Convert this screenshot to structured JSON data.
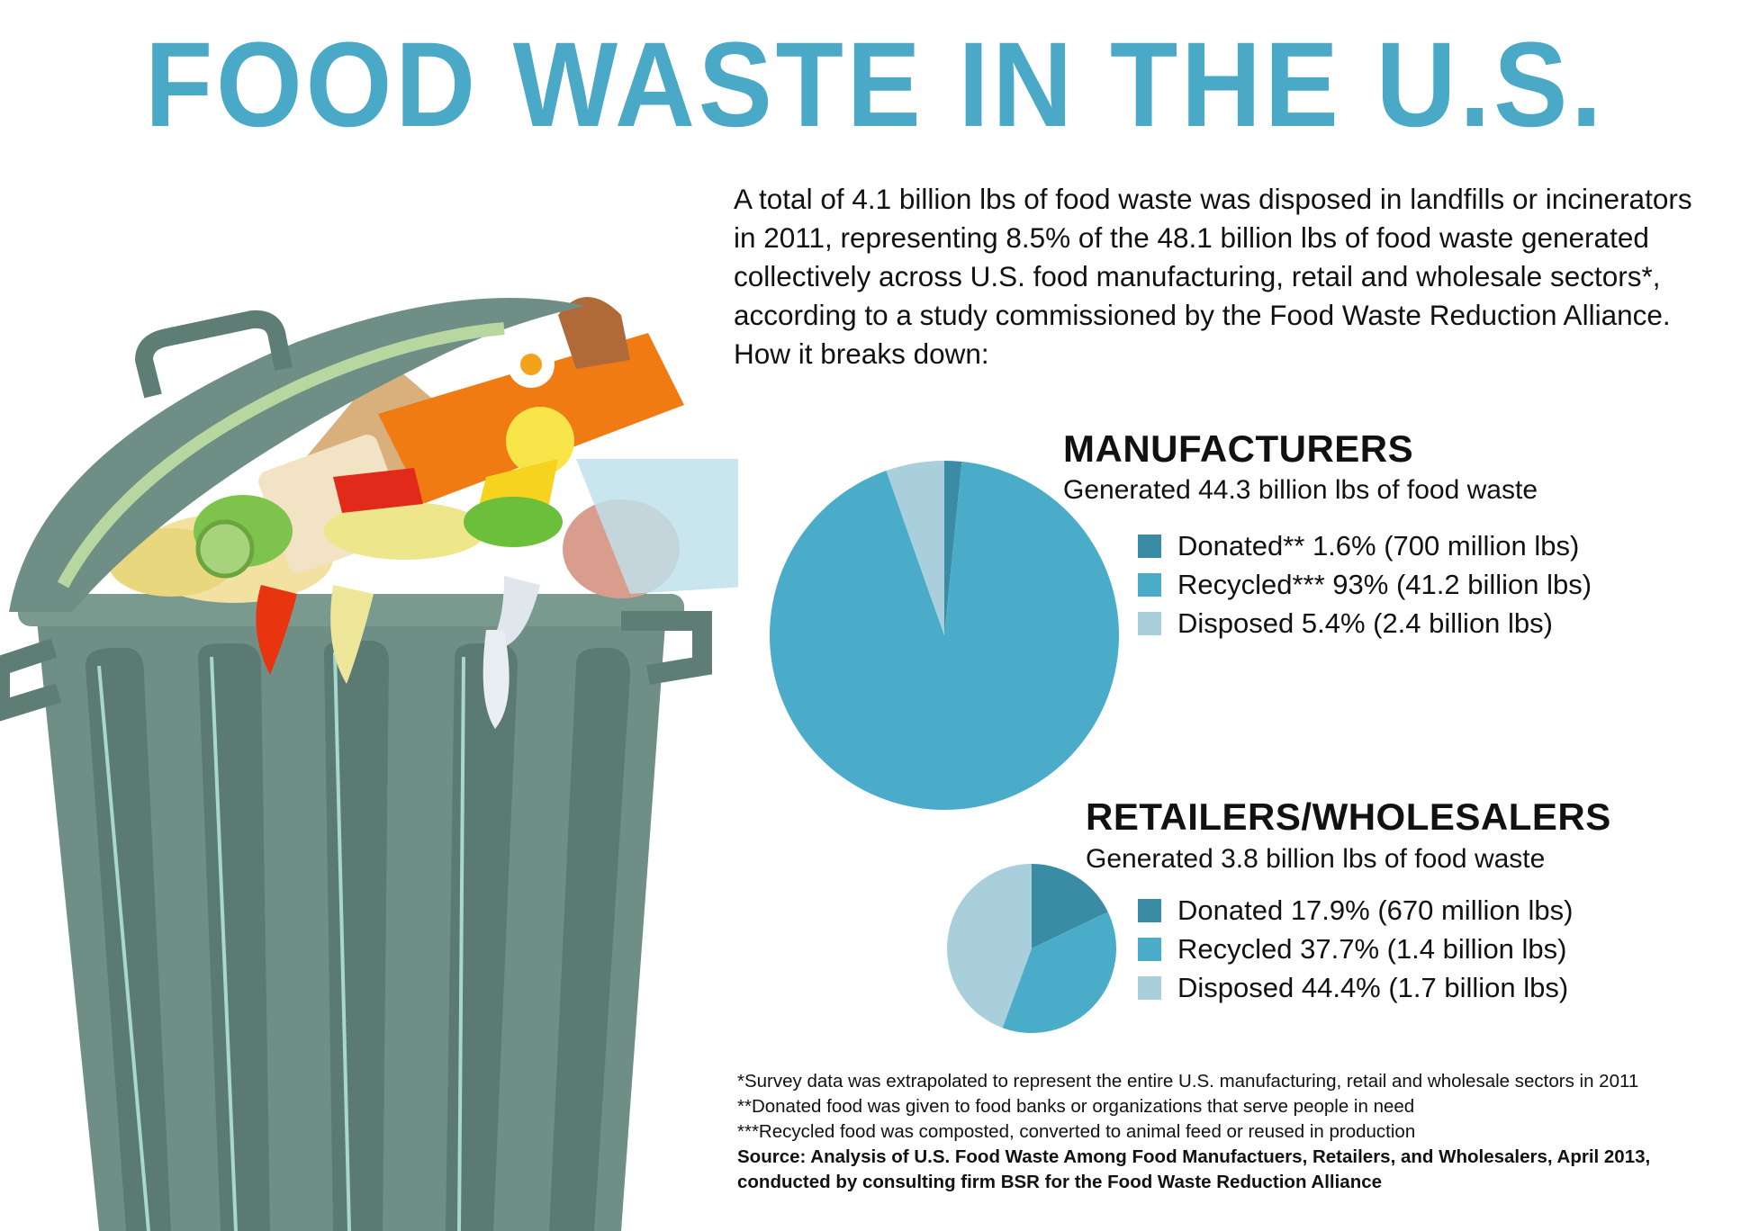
{
  "title": "FOOD WASTE IN THE U.S.",
  "intro": "A total of 4.1 billion lbs of food waste was disposed in landfills or incinerators in 2011, representing 8.5% of the 48.1 billion lbs of food waste generated collectively across U.S. food manufacturing, retail and wholesale sectors*, according to a study commissioned by the Food Waste Reduction Alliance. How it breaks down:",
  "colors": {
    "donated": "#3a8ca5",
    "recycled": "#4aacc9",
    "disposed": "#a9cfdd",
    "title": "#4aa9c7"
  },
  "chart_data": [
    {
      "type": "pie",
      "title": "MANUFACTURERS",
      "subtitle": "Generated 44.3 billion lbs of food waste",
      "categories": [
        "Donated",
        "Recycled",
        "Disposed"
      ],
      "values": [
        1.6,
        93,
        5.4
      ],
      "legend": [
        "Donated** 1.6% (700 million lbs)",
        "Recycled*** 93% (41.2 billion lbs)",
        "Disposed 5.4% (2.4 billion lbs)"
      ]
    },
    {
      "type": "pie",
      "title": "RETAILERS/WHOLESALERS",
      "subtitle": "Generated 3.8 billion lbs of food waste",
      "categories": [
        "Donated",
        "Recycled",
        "Disposed"
      ],
      "values": [
        17.9,
        37.7,
        44.4
      ],
      "legend": [
        "Donated 17.9% (670 million lbs)",
        "Recycled 37.7% (1.4 billion lbs)",
        "Disposed 44.4% (1.7 billion lbs)"
      ]
    }
  ],
  "notes": [
    "*Survey data was extrapolated to represent the entire U.S. manufacturing, retail and wholesale sectors in 2011",
    "**Donated food was given to food banks or organizations that serve people in need",
    "***Recycled food was composted, converted to animal feed or reused in production"
  ],
  "source": [
    "Source: Analysis of U.S. Food Waste Among Food Manufactuers, Retailers, and Wholesalers, April 2013,",
    "conducted by consulting firm BSR for the Food Waste Reduction Alliance"
  ]
}
